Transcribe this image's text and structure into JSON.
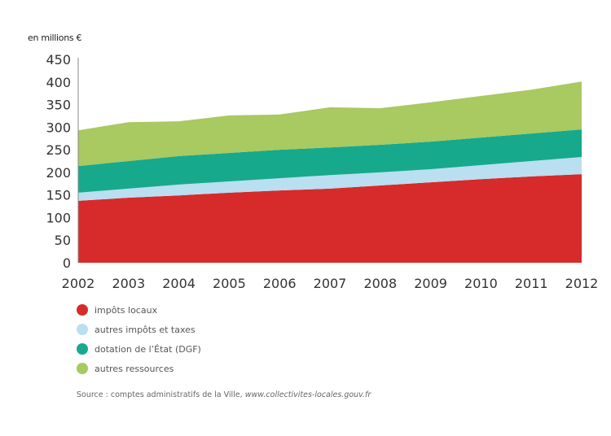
{
  "chart_data": {
    "type": "area",
    "stacked": true,
    "unit_label": "en millions €",
    "x": [
      2002,
      2003,
      2004,
      2005,
      2006,
      2007,
      2008,
      2009,
      2010,
      2011,
      2012
    ],
    "ylim": [
      0,
      450
    ],
    "yticks": [
      0,
      50,
      100,
      150,
      200,
      250,
      300,
      350,
      400,
      450
    ],
    "series": [
      {
        "name": "impôts locaux",
        "color": "#d62b2a",
        "values": [
          137,
          144,
          149,
          155,
          160,
          164,
          171,
          178,
          185,
          191,
          196
        ]
      },
      {
        "name": "autres impôts et taxes",
        "color": "#b9dff0",
        "values": [
          18,
          20,
          24,
          25,
          27,
          30,
          29,
          29,
          31,
          34,
          38
        ]
      },
      {
        "name": "dotation de l’État (DGF)",
        "color": "#17a98c",
        "values": [
          59,
          61,
          63,
          63,
          63,
          61,
          61,
          61,
          61,
          61,
          61
        ]
      },
      {
        "name": "autres ressources",
        "color": "#a9c961",
        "values": [
          79,
          86,
          77,
          83,
          78,
          89,
          81,
          87,
          92,
          97,
          106
        ]
      }
    ],
    "legend_position": "bottom-left",
    "grid": false
  },
  "source": {
    "prefix": "Source : comptes administratifs de la Ville, ",
    "link": "www.collectivites-locales.gouv.fr"
  }
}
